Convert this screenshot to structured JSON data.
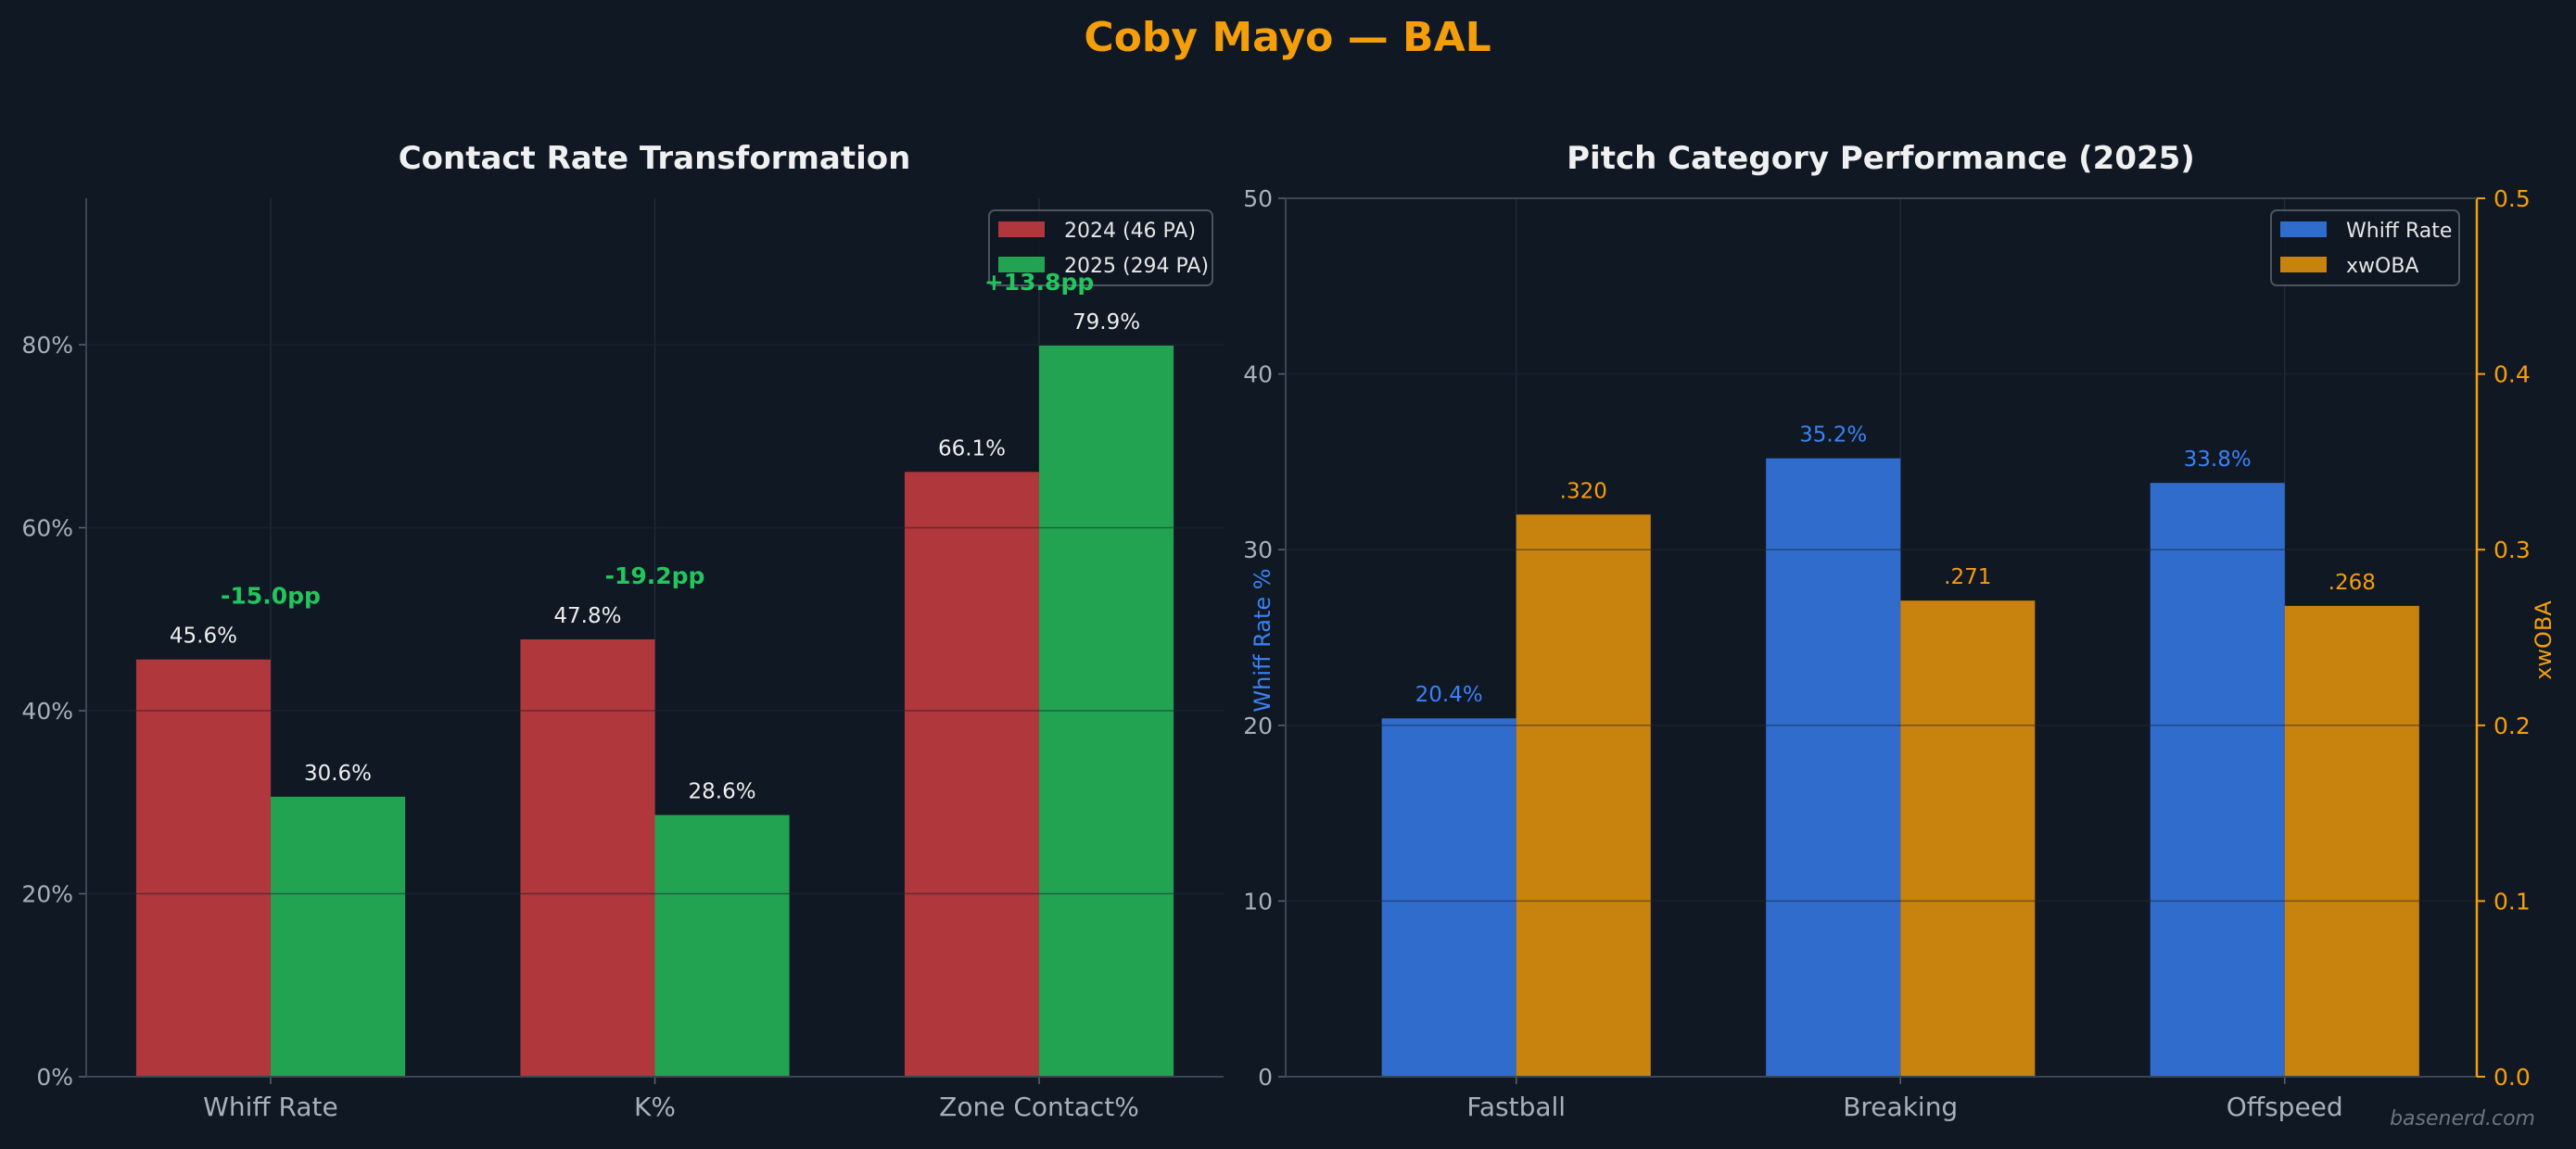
{
  "title": "Coby Mayo — BAL",
  "watermark": "basenerd.com",
  "colors": {
    "background": "#0f1823",
    "title": "#f59e0b",
    "red": "#b0373c",
    "green": "#22a351",
    "blue": "#306ccc",
    "orange": "#c8820e",
    "delta": "#22c55e",
    "grid": "#1f2b38",
    "text": "#e6e6e6",
    "tick": "#a8b0ba"
  },
  "chart_data": [
    {
      "type": "bar",
      "title": "Contact Rate Transformation",
      "categories": [
        "Whiff Rate",
        "K%",
        "Zone Contact%"
      ],
      "series": [
        {
          "name": "2024 (46 PA)",
          "values": [
            45.6,
            47.8,
            66.1
          ],
          "labels": [
            "45.6%",
            "47.8%",
            "66.1%"
          ],
          "color": "#b0373c"
        },
        {
          "name": "2025 (294 PA)",
          "values": [
            30.6,
            28.6,
            79.9
          ],
          "labels": [
            "30.6%",
            "28.6%",
            "79.9%"
          ],
          "color": "#22a351"
        }
      ],
      "annotations": [
        "-15.0pp",
        "-19.2pp",
        "+13.8pp"
      ],
      "ylim": [
        0,
        96
      ],
      "yticks": [
        0,
        20,
        40,
        60,
        80
      ],
      "ytick_labels": [
        "0%",
        "20%",
        "40%",
        "60%",
        "80%"
      ],
      "grid": true,
      "legend": "top-right"
    },
    {
      "type": "bar",
      "title": "Pitch Category Performance (2025)",
      "categories": [
        "Fastball",
        "Breaking",
        "Offspeed"
      ],
      "series": [
        {
          "name": "Whiff Rate",
          "axis": "left",
          "values": [
            20.4,
            35.2,
            33.8
          ],
          "labels": [
            "20.4%",
            "35.2%",
            "33.8%"
          ],
          "color": "#306ccc"
        },
        {
          "name": "xwOBA",
          "axis": "right",
          "values": [
            0.32,
            0.271,
            0.268
          ],
          "labels": [
            ".320",
            ".271",
            ".268"
          ],
          "color": "#c8820e"
        }
      ],
      "ylabel": "Whiff Rate %",
      "ylabel_right": "xwOBA",
      "ylim": [
        0,
        50
      ],
      "ylim_right": [
        0,
        0.5
      ],
      "yticks": [
        "0",
        "10",
        "20",
        "30",
        "40",
        "50"
      ],
      "yticks_right": [
        "0.0",
        "0.1",
        "0.2",
        "0.3",
        "0.4",
        "0.5"
      ],
      "grid": true,
      "legend": "top-right"
    }
  ]
}
